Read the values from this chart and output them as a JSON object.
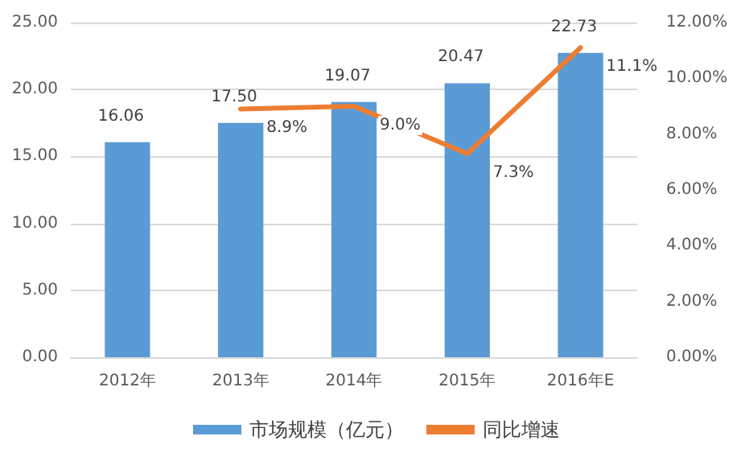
{
  "chart_data": {
    "type": "bar",
    "categories": [
      "2012年",
      "2013年",
      "2014年",
      "2015年",
      "2016年E"
    ],
    "series": [
      {
        "name": "市场规模（亿元）",
        "color": "#5b9bd5",
        "values": [
          16.06,
          17.5,
          19.07,
          20.47,
          22.73
        ],
        "value_labels": [
          "16.06",
          "17.50",
          "19.07",
          "20.47",
          "22.73"
        ]
      },
      {
        "name": "同比增速",
        "type": "line",
        "axis": "y2",
        "color": "#ed7d31",
        "values": [
          null,
          8.9,
          9.0,
          7.3,
          11.1
        ],
        "value_labels": [
          null,
          "8.9%",
          "9.0%",
          "7.3%",
          "11.1%"
        ]
      }
    ],
    "ylim": [
      0,
      25
    ],
    "yticks": [
      {
        "value": 0,
        "label": "0.00"
      },
      {
        "value": 5,
        "label": "5.00"
      },
      {
        "value": 10,
        "label": "10.00"
      },
      {
        "value": 15,
        "label": "15.00"
      },
      {
        "value": 20,
        "label": "20.00"
      },
      {
        "value": 25,
        "label": "25.00"
      }
    ],
    "y2lim": [
      0,
      12
    ],
    "y2ticks": [
      {
        "value": 0,
        "label": "0.00%"
      },
      {
        "value": 2,
        "label": "2.00%"
      },
      {
        "value": 4,
        "label": "4.00%"
      },
      {
        "value": 6,
        "label": "6.00%"
      },
      {
        "value": 8,
        "label": "8.00%"
      },
      {
        "value": 10,
        "label": "10.00%"
      },
      {
        "value": 12,
        "label": "12.00%"
      }
    ],
    "grid": "y",
    "legend": "bottom",
    "marker": "none",
    "line_style": "solid"
  }
}
